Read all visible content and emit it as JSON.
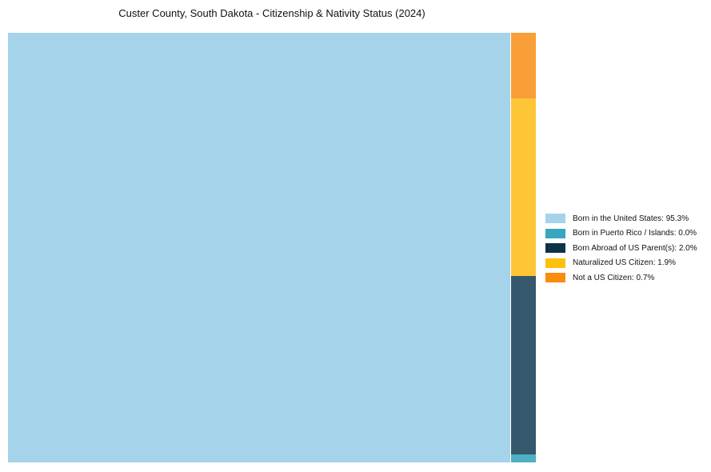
{
  "chart": {
    "title": "Custer County, South Dakota - Citizenship & Nativity Status (2024)"
  },
  "legend": {
    "items": [
      {
        "text": "Born in the United States: 95.3%",
        "swatch_color": "#A6D3EA"
      },
      {
        "text": "Born in Puerto Rico / Islands: 0.0%",
        "swatch_color": "#38A6BE"
      },
      {
        "text": "Born Abroad of US Parent(s): 2.0%",
        "swatch_color": "#0D3349"
      },
      {
        "text": "Naturalized US Citizen: 1.9%",
        "swatch_color": "#FEC00D"
      },
      {
        "text": "Not a US Citizen: 0.7%",
        "swatch_color": "#F78C0E"
      }
    ]
  },
  "chart_data": {
    "type": "treemap",
    "title": "Custer County, South Dakota - Citizenship & Nativity Status (2024)",
    "unit": "percent",
    "segments": [
      {
        "label": "Born in the United States",
        "value_pct": 95.3,
        "fill": "#A5D3EA",
        "legend_fill": "#A6D3EA"
      },
      {
        "label": "Born in Puerto Rico / Islands",
        "value_pct": 0.0,
        "fill": "#4FAFC3",
        "legend_fill": "#38A6BE"
      },
      {
        "label": "Born Abroad of US Parent(s)",
        "value_pct": 2.0,
        "fill": "#36586C",
        "legend_fill": "#0D3349"
      },
      {
        "label": "Naturalized US Citizen",
        "value_pct": 1.9,
        "fill": "#FEC636",
        "legend_fill": "#FEC00D"
      },
      {
        "label": "Not a US Citizen",
        "value_pct": 0.7,
        "fill": "#F99F38",
        "legend_fill": "#F78C0E"
      }
    ],
    "layout": {
      "legend_position": "right-center",
      "grid": false,
      "axes": false,
      "main_segment": "Born in the United States",
      "column_order_top_to_bottom": [
        "Not a US Citizen",
        "Naturalized US Citizen",
        "Born Abroad of US Parent(s)",
        "Born in Puerto Rico / Islands"
      ]
    }
  }
}
